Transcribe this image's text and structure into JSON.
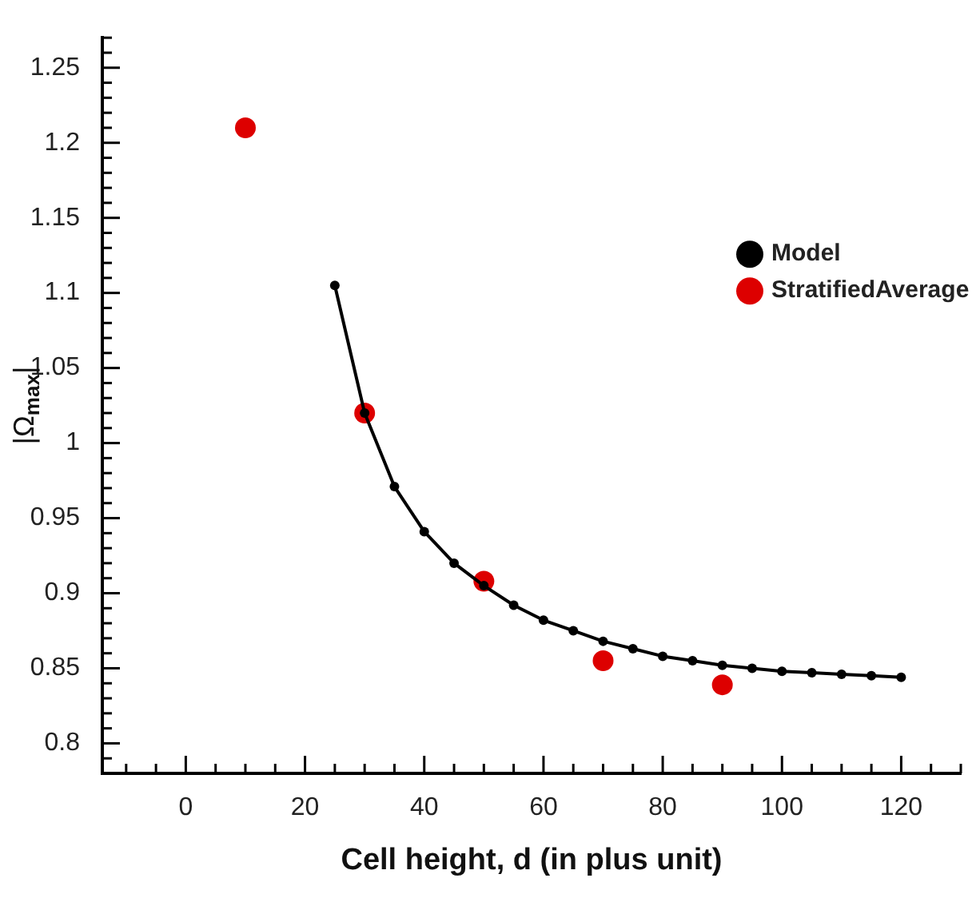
{
  "chart_data": {
    "type": "line",
    "xlabel": "Cell height, d (in plus unit)",
    "ylabel": "|Ω$_{max}$|",
    "xlim": [
      -14,
      130
    ],
    "ylim": [
      0.78,
      1.27
    ],
    "xticks": [
      {
        "value": -10,
        "label": null
      },
      {
        "value": -5,
        "label": null
      },
      0,
      {
        "value": 5,
        "label": null
      },
      {
        "value": 10,
        "label": null
      },
      {
        "value": 15,
        "label": null
      },
      20,
      {
        "value": 25,
        "label": null
      },
      {
        "value": 30,
        "label": null
      },
      {
        "value": 35,
        "label": null
      },
      40,
      {
        "value": 45,
        "label": null
      },
      {
        "value": 50,
        "label": null
      },
      {
        "value": 55,
        "label": null
      },
      60,
      {
        "value": 65,
        "label": null
      },
      {
        "value": 70,
        "label": null
      },
      {
        "value": 75,
        "label": null
      },
      80,
      {
        "value": 85,
        "label": null
      },
      {
        "value": 90,
        "label": null
      },
      {
        "value": 95,
        "label": null
      },
      100,
      {
        "value": 105,
        "label": null
      },
      {
        "value": 110,
        "label": null
      },
      {
        "value": 115,
        "label": null
      },
      120,
      {
        "value": 125,
        "label": null
      },
      {
        "value": 130,
        "label": null
      }
    ],
    "yticks": [
      {
        "value": 0.78,
        "label": null
      },
      {
        "value": 0.79,
        "label": null
      },
      0.8,
      {
        "value": 0.81,
        "label": null
      },
      {
        "value": 0.82,
        "label": null
      },
      {
        "value": 0.83,
        "label": null
      },
      {
        "value": 0.84,
        "label": null
      },
      0.85,
      {
        "value": 0.86,
        "label": null
      },
      {
        "value": 0.87,
        "label": null
      },
      {
        "value": 0.88,
        "label": null
      },
      {
        "value": 0.89,
        "label": null
      },
      0.9,
      {
        "value": 0.91,
        "label": null
      },
      {
        "value": 0.92,
        "label": null
      },
      {
        "value": 0.93,
        "label": null
      },
      {
        "value": 0.94,
        "label": null
      },
      0.95,
      {
        "value": 0.96,
        "label": null
      },
      {
        "value": 0.97,
        "label": null
      },
      {
        "value": 0.98,
        "label": null
      },
      {
        "value": 0.99,
        "label": null
      },
      1,
      {
        "value": 1.01,
        "label": null
      },
      {
        "value": 1.02,
        "label": null
      },
      {
        "value": 1.03,
        "label": null
      },
      {
        "value": 1.04,
        "label": null
      },
      1.05,
      {
        "value": 1.06,
        "label": null
      },
      {
        "value": 1.07,
        "label": null
      },
      {
        "value": 1.08,
        "label": null
      },
      {
        "value": 1.09,
        "label": null
      },
      1.1,
      {
        "value": 1.11,
        "label": null
      },
      {
        "value": 1.12,
        "label": null
      },
      {
        "value": 1.13,
        "label": null
      },
      {
        "value": 1.14,
        "label": null
      },
      1.15,
      {
        "value": 1.16,
        "label": null
      },
      {
        "value": 1.17,
        "label": null
      },
      {
        "value": 1.18,
        "label": null
      },
      {
        "value": 1.19,
        "label": null
      },
      1.2,
      {
        "value": 1.21,
        "label": null
      },
      {
        "value": 1.22,
        "label": null
      },
      {
        "value": 1.23,
        "label": null
      },
      {
        "value": 1.24,
        "label": null
      },
      1.25,
      {
        "value": 1.26,
        "label": null
      },
      {
        "value": 1.27,
        "label": null
      }
    ],
    "grid": false,
    "legend": "top right",
    "series": [
      {
        "name": "Model",
        "type": "line",
        "marker": "circle",
        "line_style": "solid",
        "color": "#000000",
        "x": [
          25,
          30,
          35,
          40,
          45,
          50,
          55,
          60,
          65,
          70,
          75,
          80,
          85,
          90,
          95,
          100,
          105,
          110,
          115,
          120
        ],
        "values": [
          1.105,
          1.02,
          0.971,
          0.941,
          0.92,
          0.905,
          0.892,
          0.882,
          0.875,
          0.868,
          0.863,
          0.858,
          0.855,
          0.852,
          0.85,
          0.848,
          0.847,
          0.846,
          0.845,
          0.844
        ]
      },
      {
        "name": "StratifiedAverage",
        "type": "scatter",
        "marker": "circle",
        "color": "#dd0000",
        "x": [
          10,
          30,
          50,
          70,
          90
        ],
        "values": [
          1.21,
          1.02,
          0.908,
          0.855,
          0.839
        ]
      }
    ]
  }
}
